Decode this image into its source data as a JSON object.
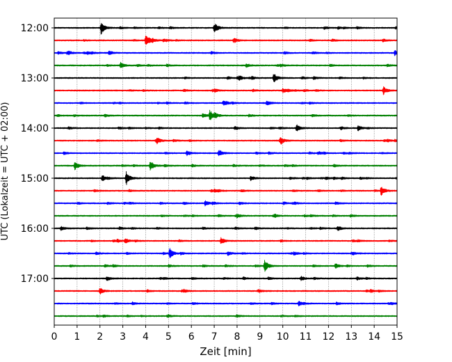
{
  "chart_data": {
    "type": "line",
    "xlabel": "Zeit  [min]",
    "ylabel": "UTC (Lokalzeit = UTC + 02:00)",
    "xlim": [
      0,
      15
    ],
    "x_ticks": [
      "0",
      "1",
      "2",
      "3",
      "4",
      "5",
      "6",
      "7",
      "8",
      "9",
      "10",
      "11",
      "12",
      "13",
      "14",
      "15"
    ],
    "y_ticks": [
      "12:00",
      "13:00",
      "14:00",
      "15:00",
      "16:00",
      "17:00"
    ],
    "vertical_gridlines": "dotted, every 1 min",
    "trace_interval_min": 15,
    "trace_colors": [
      "#000000",
      "#ff0000",
      "#0000ff",
      "#008000"
    ],
    "traces": [
      {
        "start": "12:00",
        "color": "#000000",
        "events": [
          {
            "t": 2.05,
            "amp": 1.0
          },
          {
            "t": 7.0,
            "amp": 0.6
          }
        ]
      },
      {
        "start": "12:15",
        "color": "#ff0000",
        "events": [
          {
            "t": 4.0,
            "amp": 0.75
          }
        ]
      },
      {
        "start": "12:30",
        "color": "#0000ff",
        "events": [
          {
            "t": 14.9,
            "amp": 0.4
          }
        ]
      },
      {
        "start": "12:45",
        "color": "#008000",
        "events": [
          {
            "t": 2.9,
            "amp": 0.3
          },
          {
            "t": 8.4,
            "amp": 0.3
          }
        ]
      },
      {
        "start": "13:00",
        "color": "#000000",
        "events": [
          {
            "t": 9.6,
            "amp": 0.75
          },
          {
            "t": 8.1,
            "amp": 0.3
          }
        ]
      },
      {
        "start": "13:15",
        "color": "#ff0000",
        "events": [
          {
            "t": 14.4,
            "amp": 0.6
          },
          {
            "t": 10.0,
            "amp": 0.35
          }
        ]
      },
      {
        "start": "13:30",
        "color": "#0000ff",
        "events": [
          {
            "t": 9.3,
            "amp": 0.35
          }
        ]
      },
      {
        "start": "13:45",
        "color": "#008000",
        "events": [
          {
            "t": 6.8,
            "amp": 0.85
          },
          {
            "t": 6.5,
            "amp": 0.3
          }
        ]
      },
      {
        "start": "14:00",
        "color": "#000000",
        "events": [
          {
            "t": 10.6,
            "amp": 0.55
          },
          {
            "t": 13.3,
            "amp": 0.3
          }
        ]
      },
      {
        "start": "14:15",
        "color": "#ff0000",
        "events": [
          {
            "t": 9.9,
            "amp": 0.5
          },
          {
            "t": 4.5,
            "amp": 0.35
          }
        ]
      },
      {
        "start": "14:30",
        "color": "#0000ff",
        "events": [
          {
            "t": 7.2,
            "amp": 0.55
          },
          {
            "t": 5.8,
            "amp": 0.4
          }
        ]
      },
      {
        "start": "14:45",
        "color": "#008000",
        "events": [
          {
            "t": 0.9,
            "amp": 0.6
          },
          {
            "t": 4.2,
            "amp": 0.75
          }
        ]
      },
      {
        "start": "15:00",
        "color": "#000000",
        "events": [
          {
            "t": 3.15,
            "amp": 1.1
          },
          {
            "t": 2.1,
            "amp": 0.35
          },
          {
            "t": 8.6,
            "amp": 0.35
          }
        ]
      },
      {
        "start": "15:15",
        "color": "#ff0000",
        "events": [
          {
            "t": 14.3,
            "amp": 0.75
          }
        ]
      },
      {
        "start": "15:30",
        "color": "#0000ff",
        "events": [
          {
            "t": 6.6,
            "amp": 0.4
          }
        ]
      },
      {
        "start": "15:45",
        "color": "#008000",
        "events": [
          {
            "t": 8.0,
            "amp": 0.25
          }
        ]
      },
      {
        "start": "16:00",
        "color": "#000000",
        "events": [
          {
            "t": 12.4,
            "amp": 0.4
          },
          {
            "t": 0.3,
            "amp": 0.3
          }
        ]
      },
      {
        "start": "16:15",
        "color": "#ff0000",
        "events": [
          {
            "t": 7.3,
            "amp": 0.55
          },
          {
            "t": 3.1,
            "amp": 0.35
          }
        ]
      },
      {
        "start": "16:30",
        "color": "#0000ff",
        "events": [
          {
            "t": 5.05,
            "amp": 0.8
          },
          {
            "t": 7.6,
            "amp": 0.3
          }
        ]
      },
      {
        "start": "16:45",
        "color": "#008000",
        "events": [
          {
            "t": 9.2,
            "amp": 0.95
          },
          {
            "t": 12.3,
            "amp": 0.35
          }
        ]
      },
      {
        "start": "17:00",
        "color": "#000000",
        "events": [
          {
            "t": 2.3,
            "amp": 0.35
          },
          {
            "t": 10.8,
            "amp": 0.35
          }
        ]
      },
      {
        "start": "17:15",
        "color": "#ff0000",
        "events": [
          {
            "t": 2.0,
            "amp": 0.5
          }
        ]
      },
      {
        "start": "17:30",
        "color": "#0000ff",
        "events": [
          {
            "t": 10.7,
            "amp": 0.35
          }
        ]
      },
      {
        "start": "17:45",
        "color": "#008000",
        "events": []
      }
    ]
  }
}
